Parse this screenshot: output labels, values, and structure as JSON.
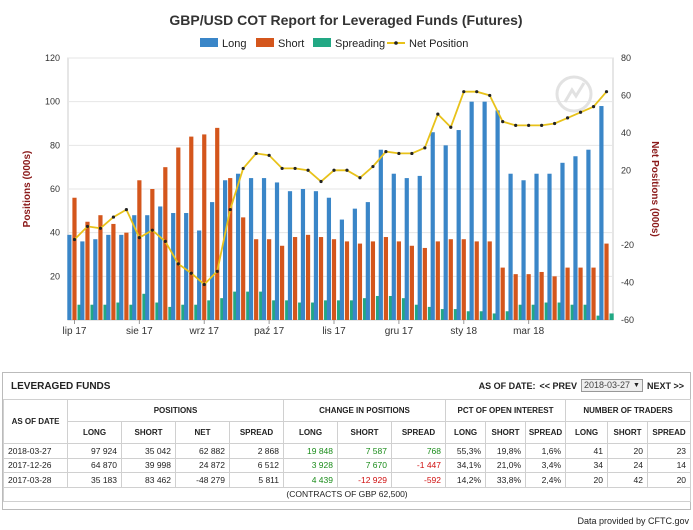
{
  "chart_data": {
    "type": "bar+line",
    "title": "GBP/USD COT Report for Leveraged Funds (Futures)",
    "legend": [
      "Long",
      "Short",
      "Spreading",
      "Net Position"
    ],
    "legend_placement": "top",
    "ylabel_left": "Positions (000s)",
    "ylabel_right": "Net Positions (000s)",
    "ylim_left": [
      0,
      120
    ],
    "yticks_left": [
      20,
      40,
      60,
      80,
      100,
      120
    ],
    "ylim_right": [
      -60,
      80
    ],
    "yticks_right": [
      -60,
      -40,
      -20,
      20,
      40,
      60,
      80
    ],
    "xtick_labels": [
      {
        "label": "lip 17",
        "index": 0
      },
      {
        "label": "sie 17",
        "index": 5
      },
      {
        "label": "wrz 17",
        "index": 10
      },
      {
        "label": "paź 17",
        "index": 15
      },
      {
        "label": "lis 17",
        "index": 20
      },
      {
        "label": "gru 17",
        "index": 25
      },
      {
        "label": "sty 18",
        "index": 30
      },
      {
        "label": "mar 18",
        "index": 35
      }
    ],
    "colors": {
      "long": "#3a86c8",
      "short": "#d4561c",
      "spreading": "#22a884",
      "net": "#e8c21a"
    },
    "series": [
      {
        "name": "Long",
        "values": [
          39,
          36,
          37,
          39,
          39,
          48,
          48,
          52,
          49,
          49,
          41,
          54,
          64,
          67,
          65,
          65,
          63,
          59,
          60,
          59,
          56,
          46,
          51,
          54,
          78,
          67,
          65,
          66,
          86,
          80,
          87,
          100,
          100,
          96,
          67,
          64,
          67,
          67,
          72,
          75,
          78,
          98
        ]
      },
      {
        "name": "Short",
        "values": [
          56,
          45,
          48,
          44,
          40,
          64,
          60,
          70,
          79,
          84,
          85,
          88,
          65,
          47,
          37,
          37,
          34,
          38,
          39,
          38,
          37,
          36,
          35,
          36,
          38,
          36,
          34,
          33,
          36,
          37,
          37,
          36,
          36,
          24,
          21,
          21,
          22,
          20,
          24,
          24,
          24,
          35
        ]
      },
      {
        "name": "Spreading",
        "values": [
          7,
          7,
          7,
          8,
          7,
          12,
          8,
          6,
          7,
          7,
          9,
          10,
          13,
          13,
          13,
          9,
          9,
          8,
          8,
          9,
          9,
          9,
          10,
          11,
          11,
          10,
          7,
          6,
          5,
          5,
          4,
          4,
          3,
          4,
          7,
          7,
          8,
          8,
          7,
          7,
          2,
          3
        ]
      },
      {
        "name": "Net Position",
        "values": [
          -17,
          -10,
          -11,
          -5,
          -1,
          -16,
          -12,
          -18,
          -30,
          -35,
          -41,
          -34,
          -1,
          21,
          29,
          28,
          21,
          21,
          20,
          14,
          20,
          20,
          16,
          22,
          30,
          29,
          29,
          32,
          50,
          43,
          62,
          62,
          60,
          46,
          44,
          44,
          44,
          45,
          48,
          51,
          54,
          62
        ]
      }
    ]
  },
  "watermark": {
    "icon": "stylized-bull-horn-logo"
  },
  "panel": {
    "title": "LEVERAGED FUNDS",
    "as_of_label": "AS OF DATE:",
    "prev_label": "<< PREV",
    "date_value": "2018-03-27",
    "next_label": "NEXT >>",
    "headers": {
      "as_of_date": "AS OF DATE",
      "groups": {
        "positions": "POSITIONS",
        "change": "CHANGE IN POSITIONS",
        "pct": "PCT OF OPEN INTEREST",
        "traders": "NUMBER OF TRADERS"
      },
      "positions_cols": [
        "LONG",
        "SHORT",
        "NET",
        "SPREAD"
      ],
      "change_cols": [
        "LONG",
        "SHORT",
        "SPREAD"
      ],
      "pct_cols": [
        "LONG",
        "SHORT",
        "SPREAD"
      ],
      "traders_cols": [
        "LONG",
        "SHORT",
        "SPREAD"
      ]
    },
    "rows": [
      {
        "date": "2018-03-27",
        "pos_long": "97 924",
        "pos_short": "35 042",
        "pos_net": "62 882",
        "pos_spread": "2 868",
        "chg_long": "19 848",
        "chg_short": "7 587",
        "chg_spread": "768",
        "pct_long": "55,3%",
        "pct_short": "19,8%",
        "pct_spread": "1,6%",
        "tr_long": "41",
        "tr_short": "20",
        "tr_spread": "23"
      },
      {
        "date": "2017-12-26",
        "pos_long": "64 870",
        "pos_short": "39 998",
        "pos_net": "24 872",
        "pos_spread": "6 512",
        "chg_long": "3 928",
        "chg_short": "7 670",
        "chg_spread": "-1 447",
        "pct_long": "34,1%",
        "pct_short": "21,0%",
        "pct_spread": "3,4%",
        "tr_long": "34",
        "tr_short": "24",
        "tr_spread": "14"
      },
      {
        "date": "2017-03-28",
        "pos_long": "35 183",
        "pos_short": "83 462",
        "pos_net": "-48 279",
        "pos_spread": "5 811",
        "chg_long": "4 439",
        "chg_short": "-12 929",
        "chg_spread": "-592",
        "pct_long": "14,2%",
        "pct_short": "33,8%",
        "pct_spread": "2,4%",
        "tr_long": "20",
        "tr_short": "42",
        "tr_spread": "20"
      }
    ],
    "footer": "(CONTRACTS OF GBP 62,500)"
  },
  "credit": "Data provided by CFTC.gov"
}
